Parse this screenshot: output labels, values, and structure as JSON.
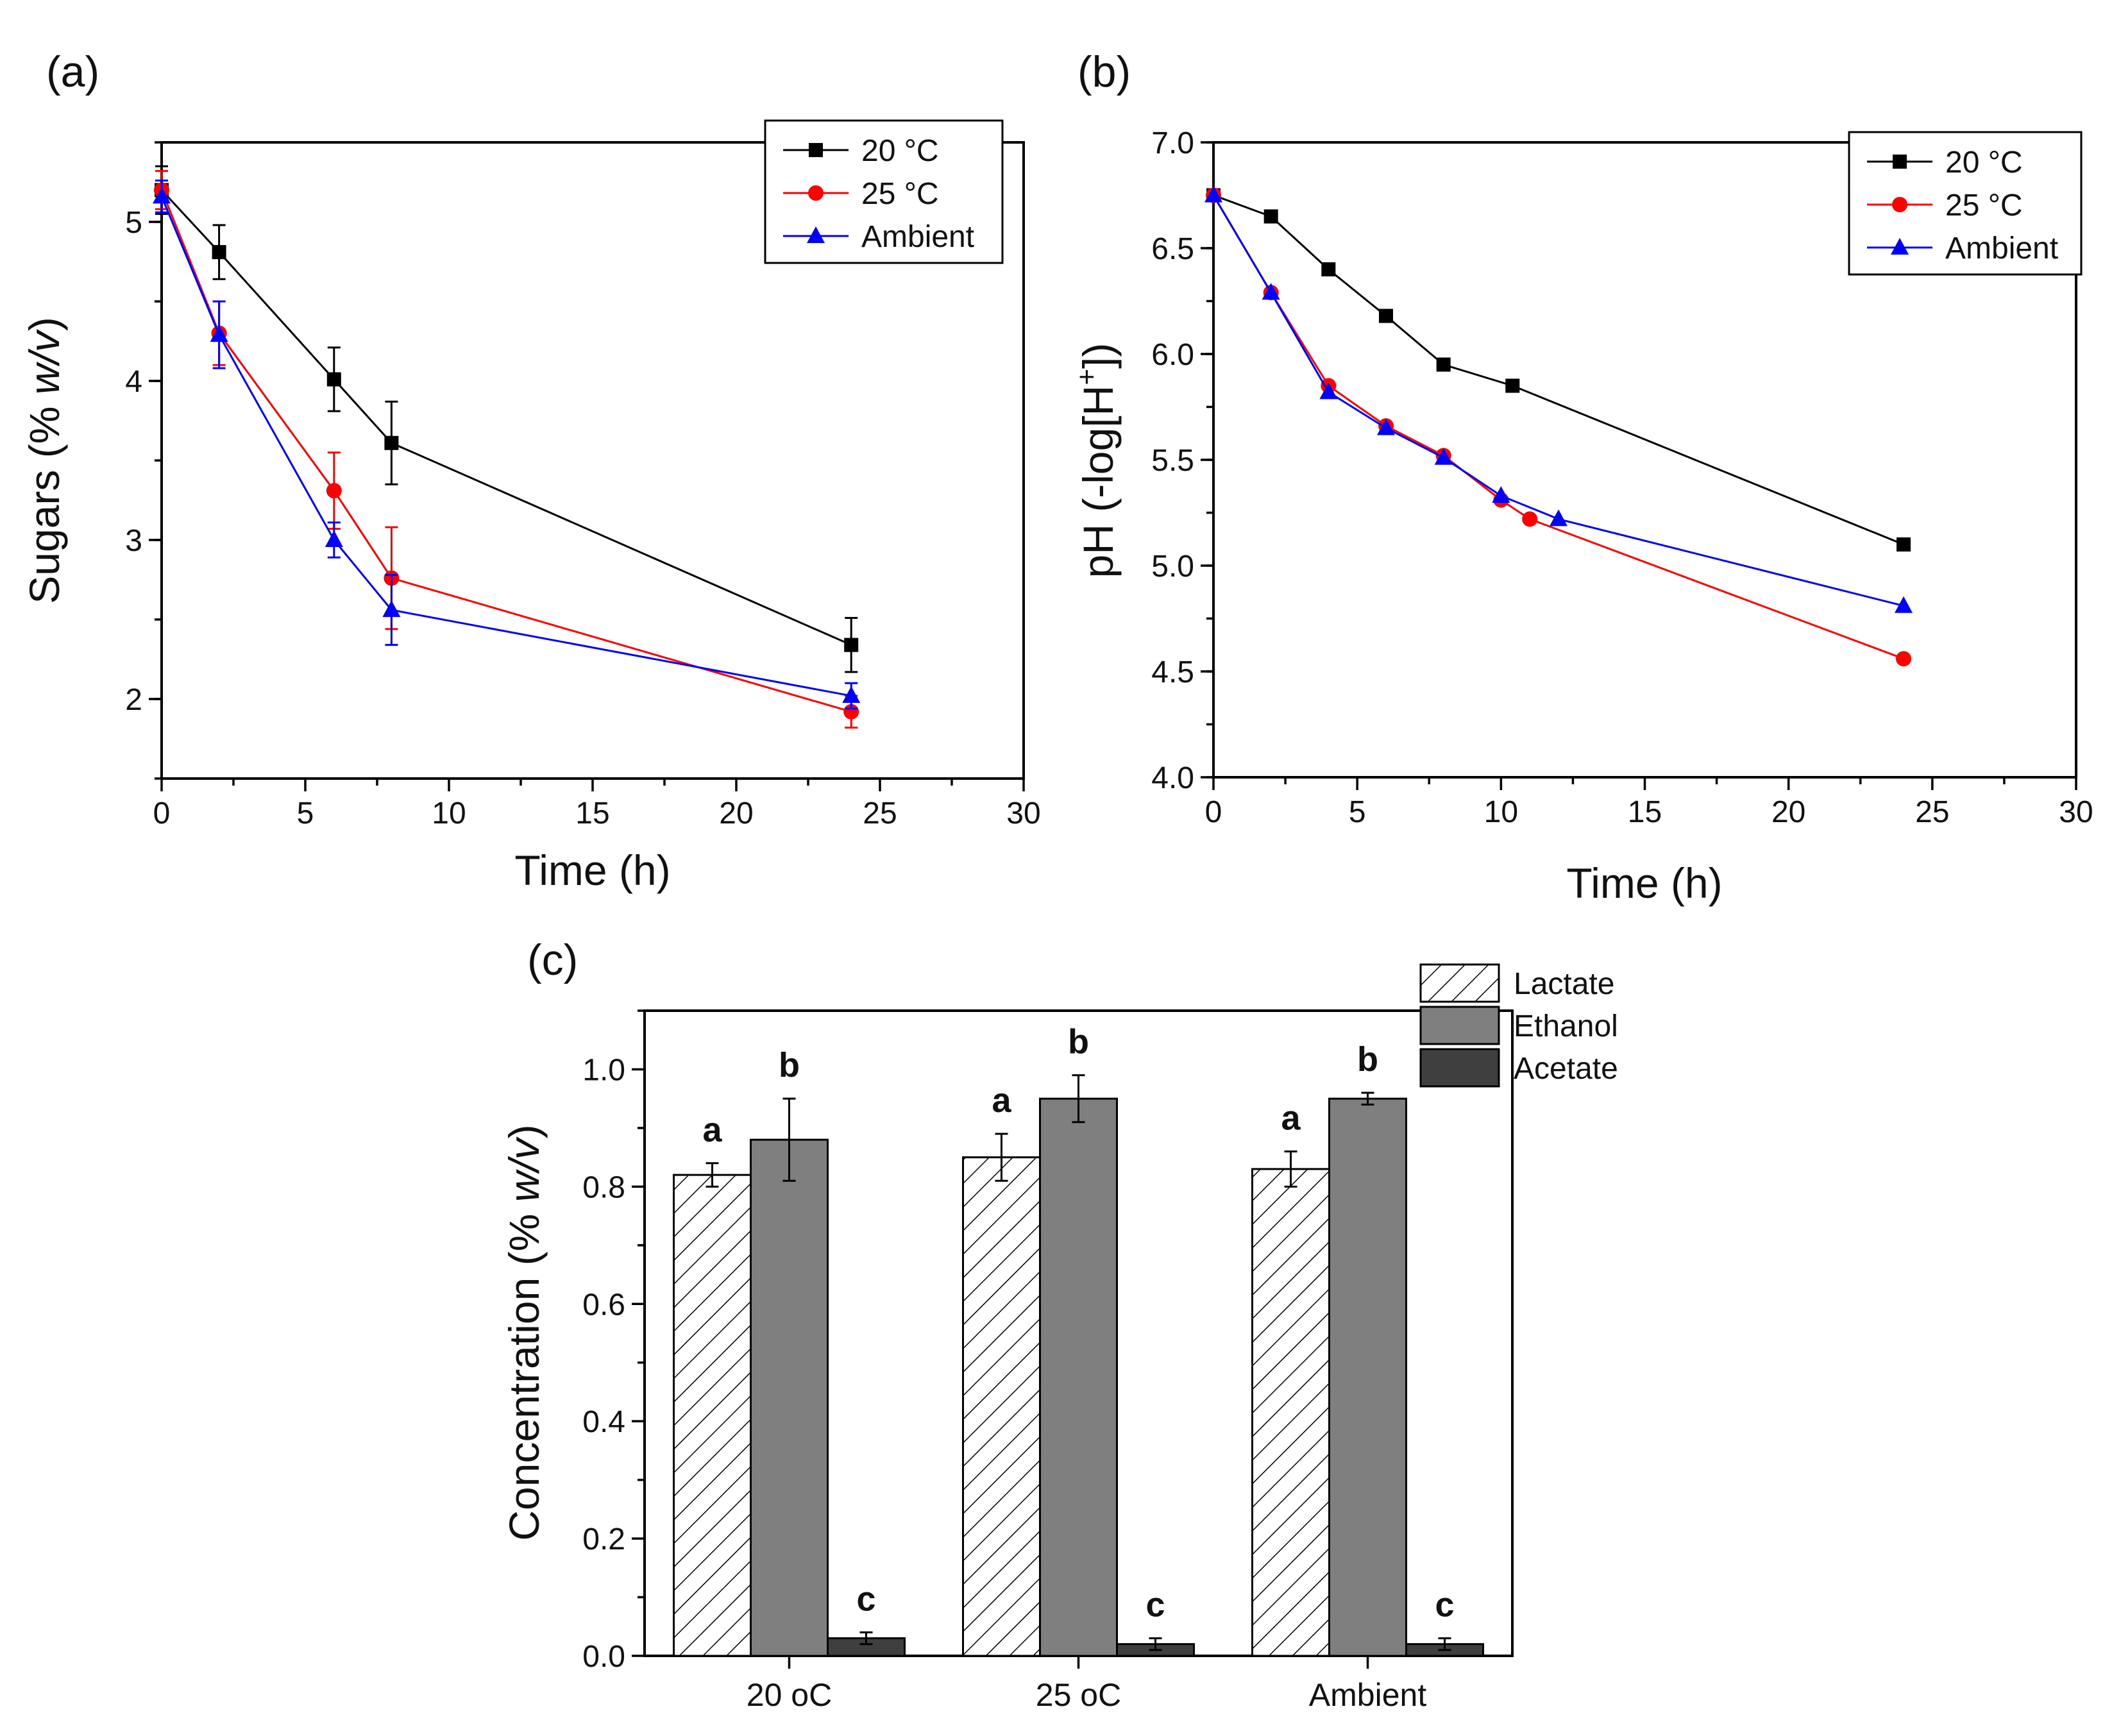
{
  "panels": {
    "a": {
      "label": "(a)",
      "chart_data": {
        "type": "line",
        "xlabel": "Time (h)",
        "ylabel_main": "Sugars (% ",
        "ylabel_italic": "w/v",
        "ylabel_end": ")",
        "xlim": [
          0,
          30
        ],
        "ylim": [
          1.5,
          5.5
        ],
        "xticks": [
          0,
          5,
          10,
          15,
          20,
          25,
          30
        ],
        "yticks": [
          2,
          3,
          4,
          5
        ],
        "legend_position": "top-right",
        "series": [
          {
            "name": "20 °C",
            "color": "#000000",
            "marker": "square",
            "x": [
              0,
              2,
              6,
              8,
              24
            ],
            "y": [
              5.2,
              4.81,
              4.01,
              3.61,
              2.34
            ],
            "err": [
              0.15,
              0.17,
              0.2,
              0.26,
              0.17
            ]
          },
          {
            "name": "25 °C",
            "color": "#ff0000",
            "marker": "circle",
            "x": [
              0,
              2,
              6,
              8,
              24
            ],
            "y": [
              5.2,
              4.3,
              3.31,
              2.76,
              1.92
            ],
            "err": [
              0.12,
              0.2,
              0.24,
              0.32,
              0.1
            ]
          },
          {
            "name": "Ambient",
            "color": "#0000ff",
            "marker": "triangle",
            "x": [
              0,
              2,
              6,
              8,
              24
            ],
            "y": [
              5.16,
              4.29,
              3.0,
              2.56,
              2.02
            ],
            "err": [
              0.1,
              0.21,
              0.11,
              0.22,
              0.08
            ]
          }
        ]
      }
    },
    "b": {
      "label": "(b)",
      "chart_data": {
        "type": "line",
        "xlabel": "Time (h)",
        "ylabel_main": "pH (-log[H",
        "ylabel_sup": "+",
        "ylabel_end": "])",
        "xlim": [
          0,
          30
        ],
        "ylim": [
          4.0,
          7.0
        ],
        "xticks": [
          0,
          5,
          10,
          15,
          20,
          25,
          30
        ],
        "yticks": [
          4.0,
          4.5,
          5.0,
          5.5,
          6.0,
          6.5,
          7.0
        ],
        "legend_position": "top-right",
        "series": [
          {
            "name": "20 °C",
            "color": "#000000",
            "marker": "square",
            "x": [
              0,
              2,
              4,
              6,
              8,
              10.4,
              24
            ],
            "y": [
              6.75,
              6.65,
              6.4,
              6.18,
              5.95,
              5.85,
              5.1
            ]
          },
          {
            "name": "25 °C",
            "color": "#ff0000",
            "marker": "circle",
            "x": [
              0,
              2,
              4,
              6,
              8,
              10,
              11,
              24
            ],
            "y": [
              6.75,
              6.29,
              5.85,
              5.66,
              5.52,
              5.31,
              5.22,
              4.56
            ]
          },
          {
            "name": "Ambient",
            "color": "#0000ff",
            "marker": "triangle",
            "x": [
              0,
              2,
              4,
              6,
              8,
              10,
              12,
              24
            ],
            "y": [
              6.75,
              6.29,
              5.82,
              5.65,
              5.51,
              5.33,
              5.22,
              4.81
            ]
          }
        ]
      }
    },
    "c": {
      "label": "(c)",
      "chart_data": {
        "type": "bar",
        "ylabel_main": "Concentration (% ",
        "ylabel_italic": "w/v",
        "ylabel_end": ")",
        "ylim": [
          0,
          1.1
        ],
        "yticks": [
          0.0,
          0.2,
          0.4,
          0.6,
          0.8,
          1.0
        ],
        "categories": [
          "20 oC",
          "25 oC",
          "Ambient"
        ],
        "legend_position": "top-right",
        "series": [
          {
            "name": "Lactate",
            "fill": "hatch",
            "values": [
              0.82,
              0.85,
              0.83
            ],
            "err": [
              0.02,
              0.04,
              0.03
            ],
            "letter": "a"
          },
          {
            "name": "Ethanol",
            "fill": "#7f7f7f",
            "values": [
              0.88,
              0.95,
              0.95
            ],
            "err": [
              0.07,
              0.04,
              0.01
            ],
            "letter": "b"
          },
          {
            "name": "Acetate",
            "fill": "#3f3f3f",
            "values": [
              0.03,
              0.02,
              0.02
            ],
            "err": [
              0.01,
              0.01,
              0.01
            ],
            "letter": "c"
          }
        ]
      }
    }
  }
}
